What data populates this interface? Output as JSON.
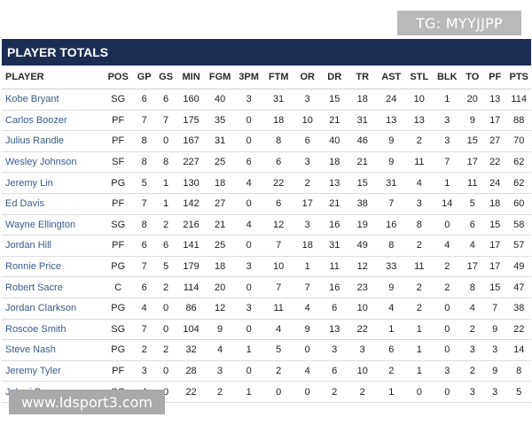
{
  "watermarks": {
    "top": "TG: MYYJJPP",
    "bottom": "www.ldsport3.com"
  },
  "title": "PLAYER TOTALS",
  "columns": [
    "PLAYER",
    "POS",
    "GP",
    "GS",
    "MIN",
    "FGM",
    "3PM",
    "FTM",
    "OR",
    "DR",
    "TR",
    "AST",
    "STL",
    "BLK",
    "TO",
    "PF",
    "PTS"
  ],
  "rows": [
    [
      "Kobe Bryant",
      "SG",
      "6",
      "6",
      "160",
      "40",
      "3",
      "31",
      "3",
      "15",
      "18",
      "24",
      "10",
      "1",
      "20",
      "13",
      "114"
    ],
    [
      "Carlos Boozer",
      "PF",
      "7",
      "7",
      "175",
      "35",
      "0",
      "18",
      "10",
      "21",
      "31",
      "13",
      "13",
      "3",
      "9",
      "17",
      "88"
    ],
    [
      "Julius Randle",
      "PF",
      "8",
      "0",
      "167",
      "31",
      "0",
      "8",
      "6",
      "40",
      "46",
      "9",
      "2",
      "3",
      "15",
      "27",
      "70"
    ],
    [
      "Wesley Johnson",
      "SF",
      "8",
      "8",
      "227",
      "25",
      "6",
      "6",
      "3",
      "18",
      "21",
      "9",
      "11",
      "7",
      "17",
      "22",
      "62"
    ],
    [
      "Jeremy Lin",
      "PG",
      "5",
      "1",
      "130",
      "18",
      "4",
      "22",
      "2",
      "13",
      "15",
      "31",
      "4",
      "1",
      "11",
      "24",
      "62"
    ],
    [
      "Ed Davis",
      "PF",
      "7",
      "1",
      "142",
      "27",
      "0",
      "6",
      "17",
      "21",
      "38",
      "7",
      "3",
      "14",
      "5",
      "18",
      "60"
    ],
    [
      "Wayne Ellington",
      "SG",
      "8",
      "2",
      "216",
      "21",
      "4",
      "12",
      "3",
      "16",
      "19",
      "16",
      "8",
      "0",
      "6",
      "15",
      "58"
    ],
    [
      "Jordan Hill",
      "PF",
      "6",
      "6",
      "141",
      "25",
      "0",
      "7",
      "18",
      "31",
      "49",
      "8",
      "2",
      "4",
      "4",
      "17",
      "57"
    ],
    [
      "Ronnie Price",
      "PG",
      "7",
      "5",
      "179",
      "18",
      "3",
      "10",
      "1",
      "11",
      "12",
      "33",
      "11",
      "2",
      "17",
      "17",
      "49"
    ],
    [
      "Robert Sacre",
      "C",
      "6",
      "2",
      "114",
      "20",
      "0",
      "7",
      "7",
      "16",
      "23",
      "9",
      "2",
      "2",
      "8",
      "15",
      "47"
    ],
    [
      "Jordan Clarkson",
      "PG",
      "4",
      "0",
      "86",
      "12",
      "3",
      "11",
      "4",
      "6",
      "10",
      "4",
      "2",
      "0",
      "4",
      "7",
      "38"
    ],
    [
      "Roscoe Smith",
      "SG",
      "7",
      "0",
      "104",
      "9",
      "0",
      "4",
      "9",
      "13",
      "22",
      "1",
      "1",
      "0",
      "2",
      "9",
      "22"
    ],
    [
      "Steve Nash",
      "PG",
      "2",
      "2",
      "32",
      "4",
      "1",
      "5",
      "0",
      "3",
      "3",
      "6",
      "1",
      "0",
      "3",
      "3",
      "14"
    ],
    [
      "Jeremy Tyler",
      "PF",
      "3",
      "0",
      "28",
      "3",
      "0",
      "2",
      "4",
      "6",
      "10",
      "2",
      "1",
      "3",
      "2",
      "9",
      "8"
    ],
    [
      "Jabari Brown",
      "SG",
      "4",
      "0",
      "22",
      "2",
      "1",
      "0",
      "0",
      "2",
      "2",
      "1",
      "0",
      "0",
      "3",
      "3",
      "5"
    ]
  ]
}
